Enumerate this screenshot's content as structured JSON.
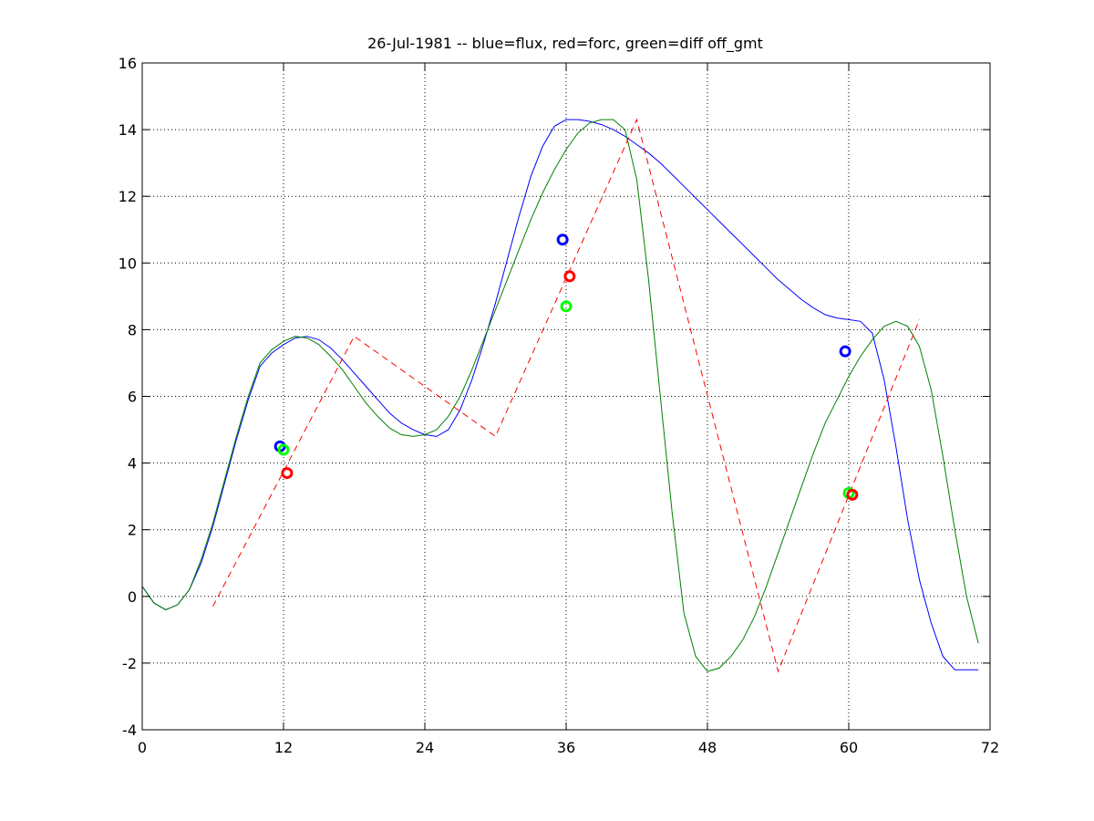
{
  "chart_data": {
    "type": "line",
    "title": "26-Jul-1981 -- blue=flux, red=forc, green=diff off_gmt",
    "xlabel": "",
    "ylabel": "",
    "xlim": [
      0,
      72
    ],
    "ylim": [
      -4,
      16
    ],
    "xticks": [
      0,
      12,
      24,
      36,
      48,
      60,
      72
    ],
    "yticks": [
      -4,
      -2,
      0,
      2,
      4,
      6,
      8,
      10,
      12,
      14,
      16
    ],
    "grid": true,
    "series": [
      {
        "color": "#0000ff",
        "style": "solid",
        "x": [
          0,
          1,
          2,
          3,
          4,
          5,
          6,
          7,
          8,
          9,
          10,
          11,
          12,
          13,
          14,
          15,
          16,
          17,
          18,
          19,
          20,
          21,
          22,
          23,
          24,
          25,
          26,
          27,
          28,
          29,
          30,
          31,
          32,
          33,
          34,
          35,
          36,
          37,
          38,
          39,
          40,
          41,
          42,
          43,
          44,
          45,
          46,
          47,
          48,
          49,
          50,
          51,
          52,
          53,
          54,
          55,
          56,
          57,
          58,
          59,
          60,
          61,
          62,
          63,
          64,
          65,
          66,
          67,
          68,
          69,
          70,
          71
        ],
        "y": [
          0.3,
          -0.2,
          -0.4,
          -0.25,
          0.2,
          1.0,
          2.1,
          3.4,
          4.7,
          5.9,
          6.9,
          7.3,
          7.55,
          7.75,
          7.8,
          7.7,
          7.45,
          7.1,
          6.7,
          6.3,
          5.9,
          5.5,
          5.2,
          5.0,
          4.85,
          4.8,
          5.0,
          5.6,
          6.5,
          7.6,
          8.8,
          10.1,
          11.4,
          12.6,
          13.5,
          14.1,
          14.3,
          14.3,
          14.25,
          14.15,
          14.0,
          13.8,
          13.55,
          13.3,
          13.0,
          12.65,
          12.3,
          11.95,
          11.6,
          11.25,
          10.9,
          10.55,
          10.2,
          9.85,
          9.5,
          9.2,
          8.9,
          8.65,
          8.45,
          8.35,
          8.3,
          8.25,
          7.9,
          6.5,
          4.5,
          2.3,
          0.5,
          -0.8,
          -1.8,
          -2.2,
          -2.2,
          -2.2
        ]
      },
      {
        "color": "#008000",
        "style": "solid",
        "x": [
          0,
          1,
          2,
          3,
          4,
          5,
          6,
          7,
          8,
          9,
          10,
          11,
          12,
          13,
          14,
          15,
          16,
          17,
          18,
          19,
          20,
          21,
          22,
          23,
          24,
          25,
          26,
          27,
          28,
          29,
          30,
          31,
          32,
          33,
          34,
          35,
          36,
          37,
          38,
          39,
          40,
          41,
          42,
          43,
          44,
          45,
          46,
          47,
          48,
          49,
          50,
          51,
          52,
          53,
          54,
          55,
          56,
          57,
          58,
          59,
          60,
          61,
          62,
          63,
          64,
          65,
          66,
          67,
          68,
          69,
          70,
          71
        ],
        "y": [
          0.3,
          -0.2,
          -0.4,
          -0.25,
          0.2,
          1.1,
          2.2,
          3.5,
          4.8,
          6.0,
          7.0,
          7.4,
          7.65,
          7.8,
          7.75,
          7.55,
          7.2,
          6.8,
          6.3,
          5.8,
          5.4,
          5.05,
          4.85,
          4.8,
          4.85,
          5.0,
          5.4,
          6.0,
          6.8,
          7.7,
          8.6,
          9.5,
          10.4,
          11.3,
          12.1,
          12.8,
          13.4,
          13.9,
          14.2,
          14.3,
          14.3,
          14.0,
          12.5,
          9.5,
          6.0,
          2.5,
          -0.5,
          -1.8,
          -2.25,
          -2.15,
          -1.8,
          -1.3,
          -0.6,
          0.3,
          1.3,
          2.3,
          3.3,
          4.3,
          5.2,
          5.9,
          6.6,
          7.2,
          7.7,
          8.1,
          8.25,
          8.1,
          7.5,
          6.2,
          4.2,
          2.0,
          0.0,
          -1.4
        ]
      },
      {
        "color": "#ff0000",
        "style": "dashed",
        "x": [
          6,
          18,
          30,
          42,
          54,
          66
        ],
        "y": [
          -0.3,
          7.8,
          4.8,
          14.3,
          -2.25,
          8.3
        ]
      }
    ],
    "markers": [
      {
        "color": "#0000ff",
        "x": 11.7,
        "y": 4.5
      },
      {
        "color": "#00ff00",
        "x": 12.0,
        "y": 4.4
      },
      {
        "color": "#ff0000",
        "x": 12.3,
        "y": 3.7
      },
      {
        "color": "#0000ff",
        "x": 35.7,
        "y": 10.7
      },
      {
        "color": "#ff0000",
        "x": 36.3,
        "y": 9.6
      },
      {
        "color": "#00ff00",
        "x": 36.0,
        "y": 8.7
      },
      {
        "color": "#0000ff",
        "x": 59.7,
        "y": 7.35
      },
      {
        "color": "#00ff00",
        "x": 60.0,
        "y": 3.1
      },
      {
        "color": "#ff0000",
        "x": 60.3,
        "y": 3.05
      }
    ]
  }
}
